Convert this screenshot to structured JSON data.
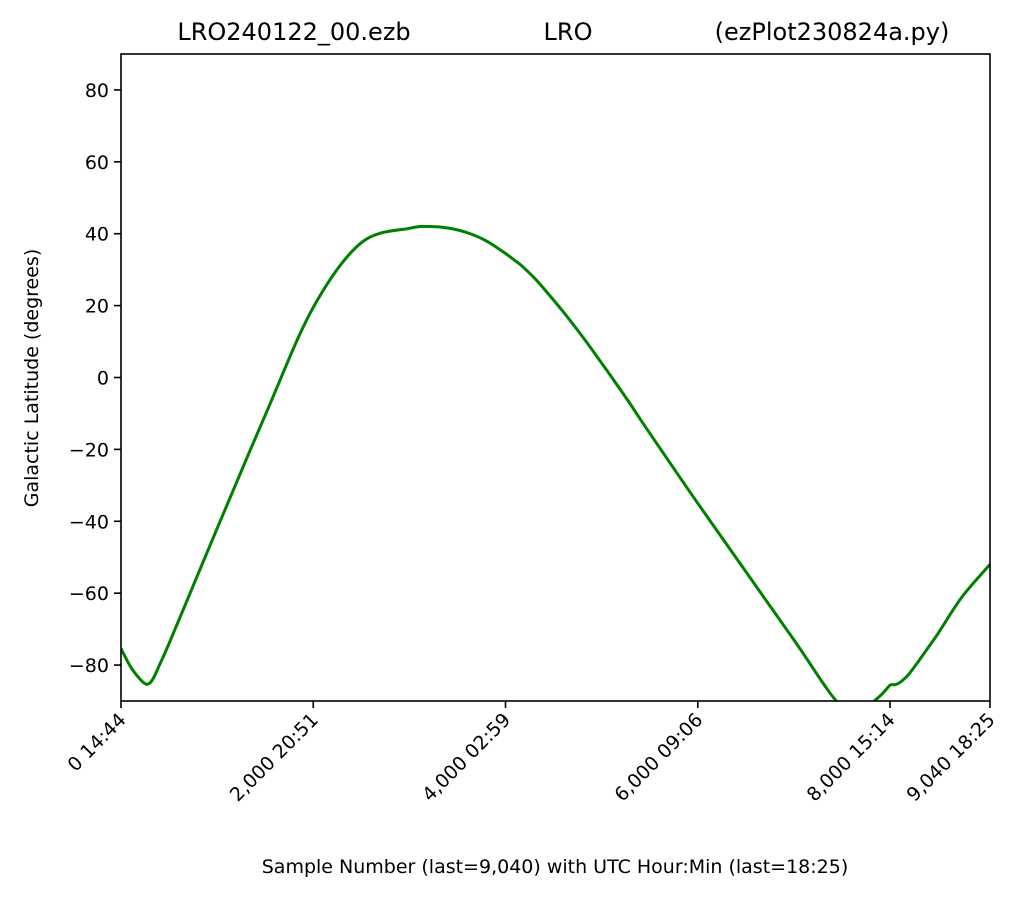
{
  "chart_data": {
    "type": "line",
    "title": {
      "left": "LRO240122_00.ezb",
      "center": "LRO",
      "right": "(ezPlot230824a.py)"
    },
    "xlabel": "Sample Number (last=9,040) with UTC Hour:Min (last=18:25)",
    "ylabel": "Galactic Latitude (degrees)",
    "xlim": [
      0,
      9040
    ],
    "ylim": [
      -90,
      90
    ],
    "grid": false,
    "x_ticks": [
      {
        "value": 0,
        "label": "0  14:44"
      },
      {
        "value": 2000,
        "label": "2,000  20:51"
      },
      {
        "value": 4000,
        "label": "4,000  02:59"
      },
      {
        "value": 6000,
        "label": "6,000  09:06"
      },
      {
        "value": 8000,
        "label": "8,000  15:14"
      },
      {
        "value": 9040,
        "label": "9,040  18:25"
      }
    ],
    "y_ticks": [
      {
        "value": 80,
        "label": "80"
      },
      {
        "value": 60,
        "label": "60"
      },
      {
        "value": 40,
        "label": "40"
      },
      {
        "value": 20,
        "label": "20"
      },
      {
        "value": 0,
        "label": "0"
      },
      {
        "value": -20,
        "label": "−20"
      },
      {
        "value": -40,
        "label": "−40"
      },
      {
        "value": -60,
        "label": "−60"
      },
      {
        "value": -80,
        "label": "−80"
      }
    ],
    "series": [
      {
        "color": "#008000",
        "x": [
          0,
          100,
          200,
          260,
          300,
          340,
          400,
          500,
          750,
          1000,
          1500,
          2000,
          2500,
          3000,
          3200,
          3400,
          3600,
          3800,
          4000,
          4100,
          4150,
          4200,
          4300,
          4400,
          4600,
          4800,
          5000,
          5250,
          5500,
          6000,
          6500,
          7000,
          7500,
          7750,
          7900,
          8000,
          8050,
          8100,
          8150,
          8200,
          8300,
          8400,
          8500,
          8750,
          9040
        ],
        "y": [
          -75.4,
          -80.5,
          -84.0,
          -85.3,
          -85.0,
          -83.5,
          -80.0,
          -74.0,
          -58.0,
          -42.0,
          -10.5,
          19.5,
          37.5,
          41.5,
          42.0,
          41.6,
          40.3,
          38.0,
          34.5,
          32.5,
          31.5,
          30.3,
          27.7,
          24.7,
          18.3,
          11.4,
          4.0,
          -5.5,
          -15.5,
          -35.0,
          -54.0,
          -73.0,
          -91.7,
          -91.3,
          -88.5,
          -85.6,
          -85.5,
          -84.9,
          -83.8,
          -82.4,
          -78.8,
          -75.0,
          -71.2,
          -61.0,
          -52.0
        ]
      }
    ]
  }
}
